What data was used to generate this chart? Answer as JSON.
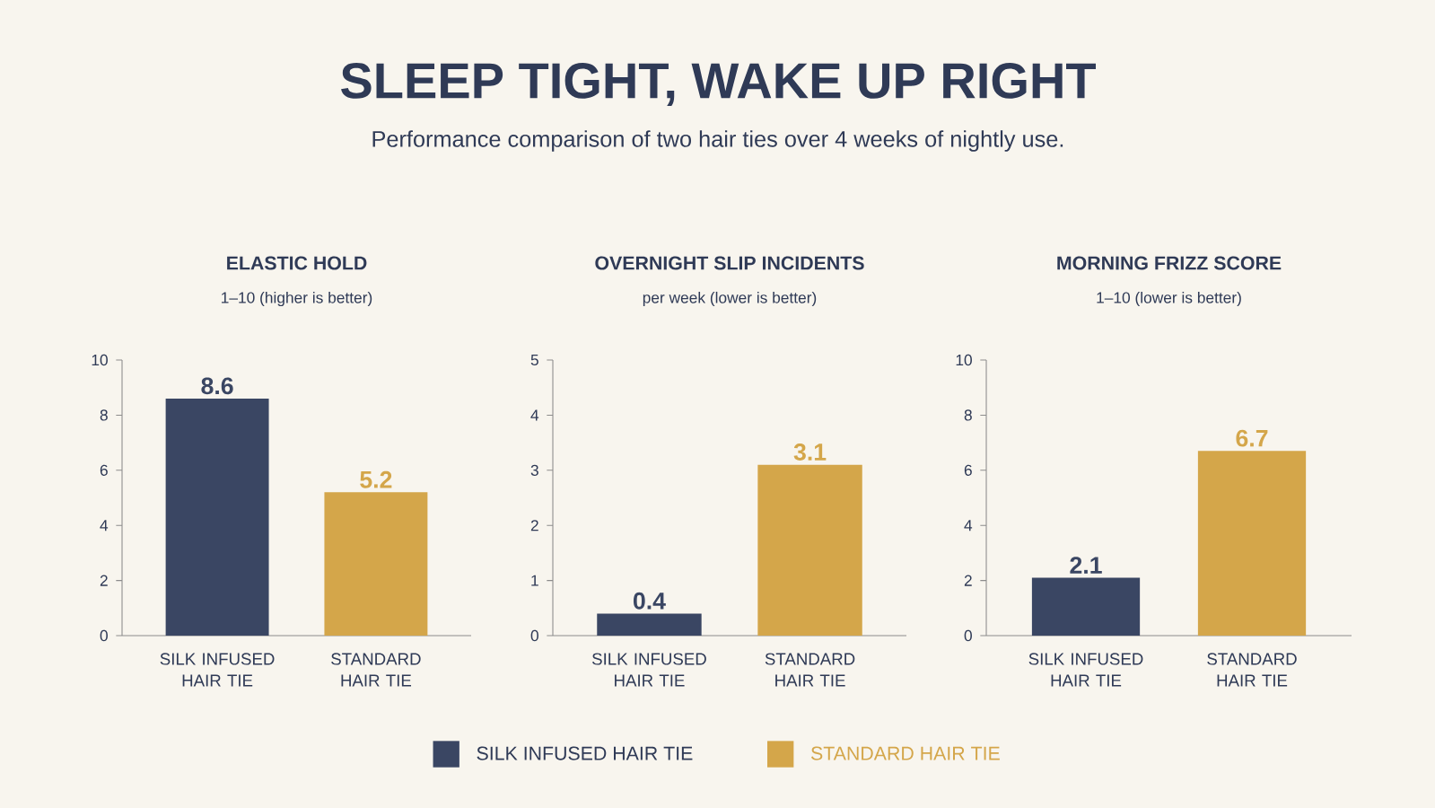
{
  "chart_data": [
    {
      "type": "other",
      "title": "SLEEP TIGHT, WAKE UP RIGHT",
      "subtitle": "Performance comparison of two hair ties over 4 weeks of nightly use."
    },
    {
      "type": "bar",
      "title": "ELASTIC HOLD",
      "subtitle": "1–10 (higher is better)",
      "categories": [
        "SILK INFUSED HAIR TIE",
        "STANDARD HAIR TIE"
      ],
      "series": [
        {
          "color": "#3a4663",
          "values": [
            8.6,
            null
          ]
        },
        {
          "color": "#d4a64a",
          "values": [
            null,
            5.2
          ]
        }
      ],
      "ylim": [
        0,
        10
      ],
      "yticks": [
        0,
        2,
        4,
        6,
        8,
        10
      ],
      "data_labels": true
    },
    {
      "type": "bar",
      "title": "OVERNIGHT SLIP INCIDENTS",
      "subtitle": "per week (lower is better)",
      "categories": [
        "SILK INFUSED HAIR TIE",
        "STANDARD HAIR TIE"
      ],
      "series": [
        {
          "name": "SILK INFUSED HAIR TIE",
          "color": "#3a4663",
          "values": [
            0.4,
            null
          ]
        },
        {
          "name": "STANDARD HAIR TIE",
          "color": "#d4a64a",
          "values": [
            null,
            3.1
          ]
        }
      ],
      "ylim": [
        0,
        5
      ],
      "yticks": [
        0,
        1,
        2,
        3,
        4,
        5
      ],
      "data_labels": true,
      "legend": "bottom"
    },
    {
      "type": "bar",
      "title": "MORNING FRIZZ SCORE",
      "subtitle": "1–10 (lower is better)",
      "categories": [
        "SILK INFUSED HAIR TIE",
        "STANDARD HAIR TIE"
      ],
      "series": [
        {
          "color": "#3a4663",
          "values": [
            2.1,
            null
          ]
        },
        {
          "color": "#d4a64a",
          "values": [
            null,
            6.7
          ]
        }
      ],
      "ylim": [
        0,
        10
      ],
      "yticks": [
        0,
        2,
        4,
        6,
        8,
        10
      ],
      "data_labels": true
    }
  ]
}
